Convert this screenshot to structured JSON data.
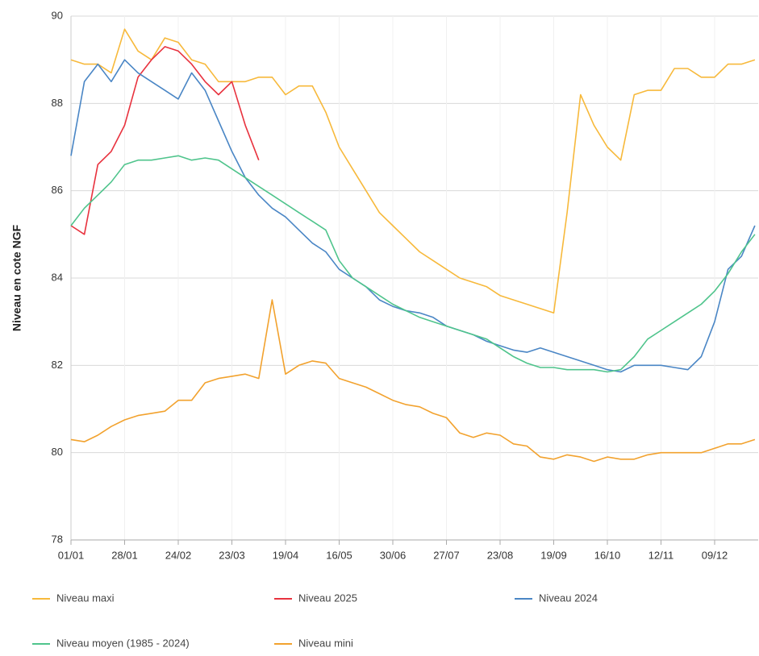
{
  "chart_data": {
    "type": "line",
    "y_label": "Niveau en cote NGF",
    "categories": [
      "01/01",
      null,
      null,
      null,
      "28/01",
      null,
      null,
      null,
      "24/02",
      null,
      null,
      null,
      "23/03",
      null,
      null,
      null,
      "19/04",
      null,
      null,
      null,
      "16/05",
      null,
      null,
      null,
      "30/06",
      null,
      null,
      null,
      "27/07",
      null,
      null,
      null,
      "23/08",
      null,
      null,
      null,
      "19/09",
      null,
      null,
      null,
      "16/10",
      null,
      null,
      null,
      "12/11",
      null,
      null,
      null,
      "09/12",
      null,
      null,
      null
    ],
    "ylim": [
      78,
      90
    ],
    "yticks": [
      78,
      80,
      82,
      84,
      86,
      88,
      90
    ],
    "grid": true,
    "legend_position": "bottom",
    "series": [
      {
        "name": "Niveau maxi",
        "color": "#f7b93b",
        "values": [
          89.0,
          88.9,
          88.9,
          88.7,
          89.7,
          89.2,
          89.0,
          89.5,
          89.4,
          89.0,
          88.9,
          88.5,
          88.5,
          88.5,
          88.6,
          88.6,
          88.2,
          88.4,
          88.4,
          87.8,
          87.0,
          86.5,
          86.0,
          85.5,
          85.2,
          84.9,
          84.6,
          84.4,
          84.2,
          84.0,
          83.9,
          83.8,
          83.6,
          83.5,
          83.4,
          83.3,
          83.2,
          85.5,
          88.2,
          87.5,
          87.0,
          86.7,
          88.2,
          88.3,
          88.3,
          88.8,
          88.8,
          88.6,
          88.6,
          88.9,
          88.9,
          89.0
        ]
      },
      {
        "name": "Niveau 2025",
        "color": "#e8323e",
        "values": [
          85.2,
          85.0,
          86.6,
          86.9,
          87.5,
          88.6,
          89.0,
          89.3,
          89.2,
          88.9,
          88.5,
          88.2,
          88.5,
          87.5,
          86.7,
          null,
          null,
          null,
          null,
          null,
          null,
          null,
          null,
          null,
          null,
          null,
          null,
          null,
          null,
          null,
          null,
          null,
          null,
          null,
          null,
          null,
          null,
          null,
          null,
          null,
          null,
          null,
          null,
          null,
          null,
          null,
          null,
          null,
          null,
          null,
          null,
          null
        ]
      },
      {
        "name": "Niveau 2024",
        "color": "#4a86c5",
        "values": [
          86.8,
          88.5,
          88.9,
          88.5,
          89.0,
          88.7,
          88.5,
          88.3,
          88.1,
          88.7,
          88.3,
          87.6,
          86.9,
          86.3,
          85.9,
          85.6,
          85.4,
          85.1,
          84.8,
          84.6,
          84.2,
          84.0,
          83.8,
          83.5,
          83.35,
          83.25,
          83.2,
          83.1,
          82.9,
          82.8,
          82.7,
          82.55,
          82.45,
          82.35,
          82.3,
          82.4,
          82.3,
          82.2,
          82.1,
          82.0,
          81.9,
          81.85,
          82.0,
          82.0,
          82.0,
          81.95,
          81.9,
          82.2,
          83.0,
          84.2,
          84.5,
          85.2
        ]
      },
      {
        "name": "Niveau moyen (1985 - 2024)",
        "color": "#4fc48c",
        "values": [
          85.2,
          85.6,
          85.9,
          86.2,
          86.6,
          86.7,
          86.7,
          86.75,
          86.8,
          86.7,
          86.75,
          86.7,
          86.5,
          86.3,
          86.1,
          85.9,
          85.7,
          85.5,
          85.3,
          85.1,
          84.4,
          84.0,
          83.8,
          83.6,
          83.4,
          83.25,
          83.1,
          83.0,
          82.9,
          82.8,
          82.7,
          82.6,
          82.4,
          82.2,
          82.05,
          81.95,
          81.95,
          81.9,
          81.9,
          81.9,
          81.85,
          81.9,
          82.2,
          82.6,
          82.8,
          83.0,
          83.2,
          83.4,
          83.7,
          84.1,
          84.6,
          85.0
        ]
      },
      {
        "name": "Niveau mini",
        "color": "#f2a22e",
        "values": [
          80.3,
          80.25,
          80.4,
          80.6,
          80.75,
          80.85,
          80.9,
          80.95,
          81.2,
          81.2,
          81.6,
          81.7,
          81.75,
          81.8,
          81.7,
          83.5,
          81.8,
          82.0,
          82.1,
          82.05,
          81.7,
          81.6,
          81.5,
          81.35,
          81.2,
          81.1,
          81.05,
          80.9,
          80.8,
          80.45,
          80.35,
          80.45,
          80.4,
          80.2,
          80.15,
          79.9,
          79.85,
          79.95,
          79.9,
          79.8,
          79.9,
          79.85,
          79.85,
          79.95,
          80.0,
          80.0,
          80.0,
          80.0,
          80.1,
          80.2,
          80.2,
          80.3
        ]
      }
    ]
  }
}
